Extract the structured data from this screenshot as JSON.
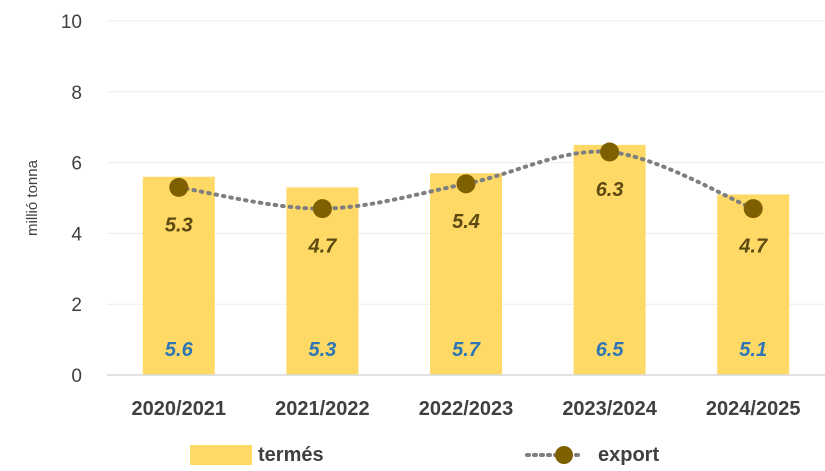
{
  "chart_data": {
    "type": "bar",
    "categories": [
      "2020/2021",
      "2021/2022",
      "2022/2023",
      "2023/2024",
      "2024/2025"
    ],
    "series": [
      {
        "name": "termés",
        "type": "bar",
        "values": [
          5.6,
          5.3,
          5.7,
          6.5,
          5.1
        ],
        "color": "#FFD966",
        "label_color": "#2E75B6"
      },
      {
        "name": "export",
        "type": "line",
        "line_style": "dotted-smooth",
        "values": [
          5.3,
          4.7,
          5.4,
          6.3,
          4.7
        ],
        "color": "#7F6000",
        "line_color": "#7F7F7F",
        "label_color": "#5C4A12"
      }
    ],
    "ylabel": "millió tonna",
    "xlabel": "",
    "ylim": [
      0,
      10
    ],
    "yticks": [
      0,
      2,
      4,
      6,
      8,
      10
    ],
    "grid": true,
    "legend": "bottom"
  }
}
